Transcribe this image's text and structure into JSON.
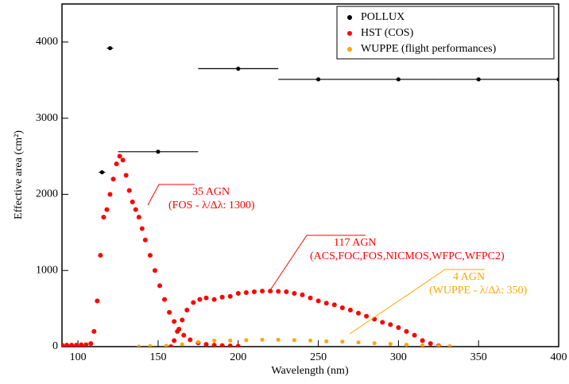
{
  "chart_data": {
    "type": "scatter",
    "xlabel": "Wavelength (nm)",
    "ylabel": "Effective area (cm²)",
    "xlim": [
      90,
      400
    ],
    "ylim": [
      0,
      4500
    ],
    "xticks": [
      100,
      150,
      200,
      250,
      300,
      350,
      400
    ],
    "yticks": [
      0,
      1000,
      2000,
      3000,
      4000
    ],
    "legend": "upper right",
    "series": [
      {
        "name": "POLLUX",
        "color": "#000000",
        "x": [
          115,
          120,
          150,
          200,
          250,
          300,
          350,
          400
        ],
        "values": [
          2290,
          3920,
          2560,
          3650,
          3510,
          3510,
          3510,
          3510
        ],
        "xerr": [
          2,
          2,
          25,
          25,
          25,
          25,
          25,
          25
        ]
      },
      {
        "name": "HST (COS)",
        "color": "#ff0000",
        "x": [
          90,
          93,
          96,
          99,
          102,
          105,
          108,
          110,
          112,
          114,
          116,
          118,
          120,
          122,
          124,
          126,
          128,
          130,
          132,
          134,
          136,
          138,
          140,
          142,
          145,
          148,
          151,
          154,
          157,
          160,
          163,
          166,
          170,
          175,
          180,
          185,
          190,
          195,
          200,
          158,
          160,
          162,
          165,
          168,
          172,
          176,
          180,
          185,
          190,
          195,
          200,
          205,
          210,
          215,
          220,
          225,
          230,
          235,
          240,
          245,
          250,
          255,
          260,
          265,
          270,
          275,
          280,
          285,
          290,
          295,
          300,
          305,
          310,
          315,
          320,
          325
        ],
        "values": [
          20,
          20,
          20,
          20,
          25,
          25,
          40,
          200,
          600,
          1200,
          1700,
          1800,
          2000,
          2200,
          2400,
          2500,
          2450,
          2250,
          2050,
          1900,
          1800,
          1700,
          1550,
          1400,
          1200,
          1000,
          800,
          620,
          450,
          330,
          230,
          150,
          90,
          50,
          30,
          20,
          15,
          10,
          5,
          0,
          80,
          200,
          350,
          480,
          580,
          620,
          640,
          620,
          650,
          660,
          700,
          710,
          720,
          730,
          730,
          725,
          720,
          700,
          680,
          640,
          600,
          570,
          550,
          510,
          480,
          440,
          400,
          360,
          320,
          290,
          250,
          200,
          150,
          80,
          40,
          10
        ]
      },
      {
        "name": "WUPPE (flight performances)",
        "color": "#ffa500",
        "x": [
          138,
          145,
          155,
          165,
          175,
          185,
          195,
          205,
          215,
          225,
          235,
          245,
          255,
          265,
          275,
          285,
          295,
          305,
          315,
          325,
          332
        ],
        "values": [
          0,
          5,
          10,
          30,
          60,
          80,
          80,
          85,
          90,
          90,
          85,
          80,
          70,
          65,
          55,
          45,
          35,
          25,
          15,
          8,
          5
        ]
      }
    ],
    "annotations": [
      {
        "lines": [
          "35 AGN",
          "(FOS - λ/Δλ: 1300)"
        ],
        "color": "#ff0000"
      },
      {
        "lines": [
          "117 AGN",
          "(ACS,FOC,FOS,NICMOS,WFPC,WFPC2)"
        ],
        "color": "#ff0000"
      },
      {
        "lines": [
          "4 AGN",
          "(WUPPE - λ/Δλ: 350)"
        ],
        "color": "#ffa500"
      }
    ]
  }
}
